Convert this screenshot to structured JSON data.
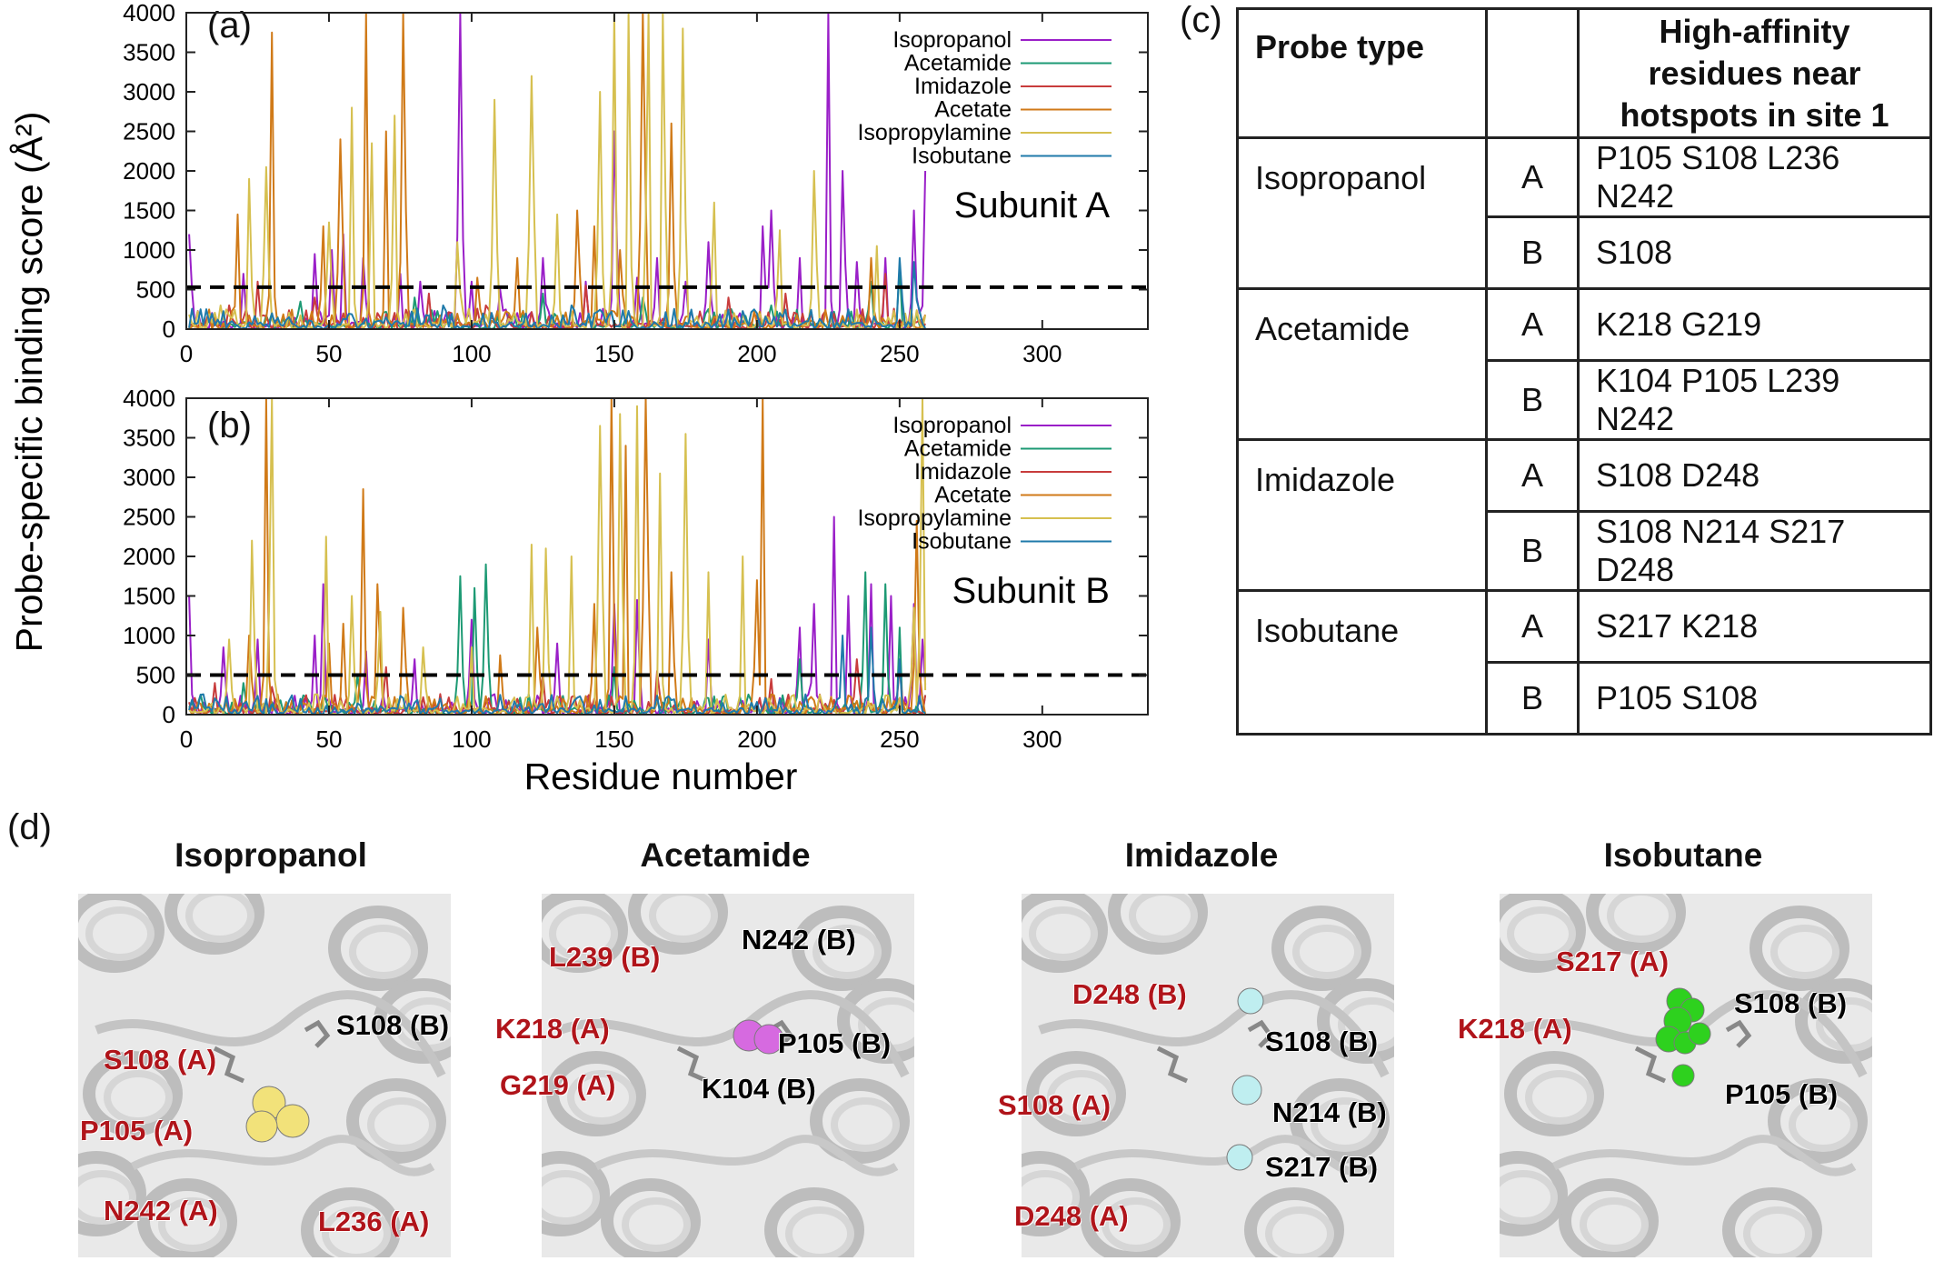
{
  "panels": {
    "a_letter": "(a)",
    "b_letter": "(b)",
    "c_letter": "(c)",
    "d_letter": "(d)"
  },
  "y_axis_label": "Probe-specific binding score (Å²)",
  "x_axis_label": "Residue number",
  "chart_data": [
    {
      "type": "line",
      "title": "Subunit A",
      "xlabel": "Residue number",
      "ylabel": "Probe-specific binding score (Å²)",
      "xlim": [
        0,
        337
      ],
      "ylim": [
        0,
        4000
      ],
      "xticks": [
        "0",
        "50",
        "100",
        "150",
        "200",
        "250",
        "300"
      ],
      "yticks": [
        "0",
        "500",
        "1000",
        "1500",
        "2000",
        "2500",
        "3000",
        "3500",
        "4000"
      ],
      "threshold": 530,
      "legend_position": "top-right",
      "series": [
        {
          "name": "Isopropanol",
          "color": "#9a1fc8",
          "peaks": [
            [
              1,
              1200
            ],
            [
              20,
              700
            ],
            [
              45,
              950
            ],
            [
              51,
              1000
            ],
            [
              55,
              1200
            ],
            [
              62,
              900
            ],
            [
              75,
              700
            ],
            [
              82,
              600
            ],
            [
              96,
              4000
            ],
            [
              100,
              600
            ],
            [
              110,
              500
            ],
            [
              125,
              900
            ],
            [
              140,
              600
            ],
            [
              150,
              2500
            ],
            [
              158,
              650
            ],
            [
              165,
              900
            ],
            [
              175,
              600
            ],
            [
              183,
              1100
            ],
            [
              202,
              1300
            ],
            [
              205,
              1500
            ],
            [
              215,
              900
            ],
            [
              225,
              4000
            ],
            [
              230,
              2000
            ],
            [
              235,
              850
            ],
            [
              245,
              900
            ],
            [
              255,
              1500
            ],
            [
              259,
              2000
            ]
          ]
        },
        {
          "name": "Acetamide",
          "color": "#1d9a74",
          "peaks": [
            [
              10,
              200
            ],
            [
              40,
              350
            ],
            [
              80,
              400
            ],
            [
              125,
              450
            ],
            [
              160,
              400
            ],
            [
              205,
              300
            ],
            [
              240,
              600
            ],
            [
              250,
              800
            ]
          ]
        },
        {
          "name": "Imidazole",
          "color": "#c83c3c",
          "peaks": [
            [
              15,
              300
            ],
            [
              25,
              600
            ],
            [
              45,
              400
            ],
            [
              85,
              450
            ],
            [
              105,
              300
            ],
            [
              140,
              550
            ],
            [
              190,
              400
            ],
            [
              210,
              450
            ],
            [
              245,
              700
            ]
          ]
        },
        {
          "name": "Acetate",
          "color": "#d07a18",
          "peaks": [
            [
              18,
              1450
            ],
            [
              30,
              3750
            ],
            [
              48,
              1300
            ],
            [
              54,
              2400
            ],
            [
              63,
              4000
            ],
            [
              70,
              2500
            ],
            [
              76,
              4000
            ],
            [
              102,
              650
            ],
            [
              116,
              900
            ],
            [
              137,
              1500
            ],
            [
              143,
              1300
            ],
            [
              152,
              1000
            ],
            [
              160,
              4000
            ],
            [
              170,
              2600
            ],
            [
              240,
              900
            ]
          ]
        },
        {
          "name": "Isopropylamine",
          "color": "#d6c050",
          "peaks": [
            [
              12,
              300
            ],
            [
              22,
              1900
            ],
            [
              28,
              2050
            ],
            [
              50,
              1350
            ],
            [
              58,
              2800
            ],
            [
              65,
              2350
            ],
            [
              73,
              2700
            ],
            [
              95,
              1100
            ],
            [
              108,
              2900
            ],
            [
              121,
              3200
            ],
            [
              130,
              1450
            ],
            [
              145,
              3000
            ],
            [
              150,
              4000
            ],
            [
              155,
              4000
            ],
            [
              162,
              4000
            ],
            [
              167,
              4000
            ],
            [
              174,
              3800
            ],
            [
              185,
              1600
            ],
            [
              208,
              1250
            ],
            [
              220,
              2000
            ],
            [
              242,
              1050
            ]
          ]
        },
        {
          "name": "Isobutane",
          "color": "#1f7aaa",
          "peaks": [
            [
              30,
              200
            ],
            [
              90,
              300
            ],
            [
              135,
              300
            ],
            [
              200,
              200
            ],
            [
              250,
              900
            ],
            [
              255,
              850
            ]
          ]
        }
      ]
    },
    {
      "type": "line",
      "title": "Subunit B",
      "xlabel": "Residue number",
      "ylabel": "Probe-specific binding score (Å²)",
      "xlim": [
        0,
        337
      ],
      "ylim": [
        0,
        4000
      ],
      "xticks": [
        "0",
        "50",
        "100",
        "150",
        "200",
        "250",
        "300"
      ],
      "yticks": [
        "0",
        "500",
        "1000",
        "1500",
        "2000",
        "2500",
        "3000",
        "3500",
        "4000"
      ],
      "threshold": 500,
      "legend_position": "top-right",
      "series": [
        {
          "name": "Isopropanol",
          "color": "#9a1fc8",
          "peaks": [
            [
              1,
              1500
            ],
            [
              13,
              850
            ],
            [
              25,
              950
            ],
            [
              45,
              1000
            ],
            [
              48,
              1650
            ],
            [
              63,
              800
            ],
            [
              80,
              700
            ],
            [
              100,
              1200
            ],
            [
              130,
              900
            ],
            [
              150,
              1400
            ],
            [
              158,
              1450
            ],
            [
              183,
              950
            ],
            [
              215,
              1100
            ],
            [
              220,
              1400
            ],
            [
              227,
              2500
            ],
            [
              232,
              1500
            ],
            [
              240,
              1650
            ],
            [
              247,
              1500
            ],
            [
              255,
              1400
            ],
            [
              258,
              950
            ]
          ]
        },
        {
          "name": "Acetamide",
          "color": "#1d9a74",
          "peaks": [
            [
              20,
              400
            ],
            [
              60,
              500
            ],
            [
              96,
              1750
            ],
            [
              101,
              1600
            ],
            [
              105,
              1900
            ],
            [
              150,
              600
            ],
            [
              215,
              700
            ],
            [
              238,
              1800
            ],
            [
              245,
              1650
            ],
            [
              250,
              1100
            ]
          ]
        },
        {
          "name": "Imidazole",
          "color": "#c83c3c",
          "peaks": [
            [
              10,
              400
            ],
            [
              30,
              350
            ],
            [
              70,
              600
            ],
            [
              125,
              500
            ],
            [
              165,
              550
            ],
            [
              205,
              450
            ],
            [
              235,
              700
            ],
            [
              250,
              600
            ]
          ]
        },
        {
          "name": "Acetate",
          "color": "#d07a18",
          "peaks": [
            [
              22,
              1000
            ],
            [
              28,
              4000
            ],
            [
              50,
              900
            ],
            [
              55,
              1150
            ],
            [
              62,
              2850
            ],
            [
              67,
              1650
            ],
            [
              76,
              1350
            ],
            [
              110,
              750
            ],
            [
              123,
              1100
            ],
            [
              143,
              1400
            ],
            [
              149,
              4000
            ],
            [
              154,
              3400
            ],
            [
              161,
              4000
            ],
            [
              170,
              1800
            ],
            [
              200,
              1700
            ],
            [
              202,
              4000
            ],
            [
              256,
              2450
            ]
          ]
        },
        {
          "name": "Isopropylamine",
          "color": "#d6c050",
          "peaks": [
            [
              15,
              950
            ],
            [
              23,
              2200
            ],
            [
              30,
              4000
            ],
            [
              49,
              2250
            ],
            [
              58,
              1500
            ],
            [
              68,
              1300
            ],
            [
              83,
              850
            ],
            [
              100,
              850
            ],
            [
              121,
              2150
            ],
            [
              126,
              2100
            ],
            [
              135,
              2000
            ],
            [
              145,
              3650
            ],
            [
              152,
              3800
            ],
            [
              158,
              3900
            ],
            [
              166,
              3050
            ],
            [
              175,
              3550
            ],
            [
              183,
              1800
            ],
            [
              195,
              2000
            ],
            [
              255,
              1350
            ],
            [
              258,
              4000
            ]
          ]
        },
        {
          "name": "Isobutane",
          "color": "#1f7aaa",
          "peaks": [
            [
              40,
              200
            ],
            [
              110,
              250
            ],
            [
              230,
              1000
            ],
            [
              240,
              1100
            ],
            [
              250,
              700
            ]
          ]
        }
      ]
    }
  ],
  "table": {
    "header_probe": "Probe type",
    "header_residues": "High-affinity residues near hotspots in site 1",
    "rows": [
      {
        "probe": "Isopropanol",
        "a": "P105 S108 L236 N242",
        "b": "S108"
      },
      {
        "probe": "Acetamide",
        "a": "K218 G219",
        "b": "K104 P105 L239 N242"
      },
      {
        "probe": "Imidazole",
        "a": "S108 D248",
        "b": "S108 N214 S217 D248"
      },
      {
        "probe": "Isobutane",
        "a": "S217 K218",
        "b": "P105 S108"
      }
    ],
    "subunit_a": "A",
    "subunit_b": "B"
  },
  "structures": [
    {
      "title": "Isopropanol",
      "probe_color": "#f2e27a",
      "labels": [
        "S108 (B)",
        "S108 (A)",
        "P105 (A)",
        "N242 (A)",
        "L236 (A)"
      ]
    },
    {
      "title": "Acetamide",
      "probe_color": "#d66ae0",
      "labels": [
        "N242 (B)",
        "L239 (B)",
        "K218 (A)",
        "P105 (B)",
        "G219 (A)",
        "K104 (B)"
      ]
    },
    {
      "title": "Imidazole",
      "probe_color": "#bfeef0",
      "labels": [
        "D248 (B)",
        "S108 (B)",
        "S108 (A)",
        "N214 (B)",
        "S217 (B)",
        "D248 (A)"
      ]
    },
    {
      "title": "Isobutane",
      "probe_color": "#2ed11e",
      "labels": [
        "S217 (A)",
        "S108 (B)",
        "K218 (A)",
        "P105 (B)"
      ]
    }
  ]
}
